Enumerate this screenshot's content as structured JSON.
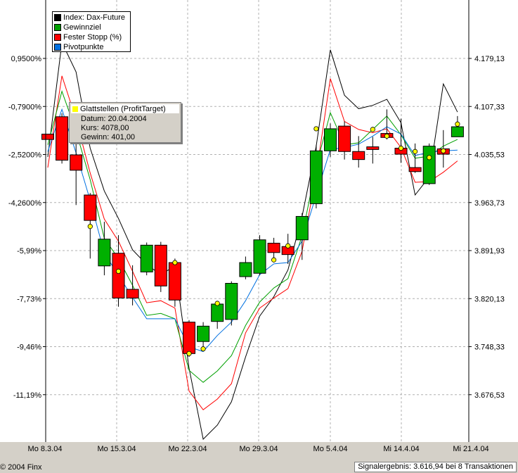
{
  "chart_data": {
    "type": "candlestick",
    "x_labels": [
      "Mo 8.3.04",
      "Mo 15.3.04",
      "Mo 22.3.04",
      "Mo 29.3.04",
      "Mo 5.4.04",
      "Mi 14.4.04",
      "Mi 21.4.04"
    ],
    "y_left_ticks": [
      "0,9500%",
      "-0,7900%",
      "-2,5200%",
      "-4,2600%",
      "-5,99%",
      "-7,73%",
      "-9,46%",
      "-11,19%"
    ],
    "y_right_ticks": [
      "4.179,13",
      "4.107,33",
      "4.035,53",
      "3.963,73",
      "3.891,93",
      "3.820,13",
      "3.748,33",
      "3.676,53"
    ],
    "y_right_values": [
      4179.13,
      4107.33,
      4035.53,
      3963.73,
      3891.93,
      3820.13,
      3748.33,
      3676.53
    ],
    "legend": [
      {
        "label": "Index: Dax-Future",
        "color": "#000000"
      },
      {
        "label": "Gewinnziel",
        "color": "#00a000"
      },
      {
        "label": "Fester Stopp (%)",
        "color": "#ff0000"
      },
      {
        "label": "Pivotpunkte",
        "color": "#0070e0"
      }
    ],
    "candles": [
      {
        "o": 4066,
        "c": 4058,
        "h": 4066,
        "l": 4058
      },
      {
        "o": 4092,
        "c": 4027,
        "h": 4097,
        "l": 4022
      },
      {
        "o": 4035,
        "c": 4012,
        "h": 4055,
        "l": 3960
      },
      {
        "o": 3975,
        "c": 3937,
        "h": 3978,
        "l": 3880
      },
      {
        "o": 3869,
        "c": 3909,
        "h": 3935,
        "l": 3855
      },
      {
        "o": 3888,
        "c": 3821,
        "h": 3915,
        "l": 3808
      },
      {
        "o": 3834,
        "c": 3821,
        "h": 3870,
        "l": 3810
      },
      {
        "o": 3860,
        "c": 3900,
        "h": 3904,
        "l": 3855
      },
      {
        "o": 3900,
        "c": 3839,
        "h": 3905,
        "l": 3830
      },
      {
        "o": 3874,
        "c": 3818,
        "h": 3880,
        "l": 3808
      },
      {
        "o": 3785,
        "c": 3738,
        "h": 3788,
        "l": 3733
      },
      {
        "o": 3756,
        "c": 3779,
        "h": 3785,
        "l": 3745
      },
      {
        "o": 3786,
        "c": 3812,
        "h": 3815,
        "l": 3775
      },
      {
        "o": 3789,
        "c": 3843,
        "h": 3846,
        "l": 3780
      },
      {
        "o": 3853,
        "c": 3874,
        "h": 3883,
        "l": 3849
      },
      {
        "o": 3858,
        "c": 3908,
        "h": 3915,
        "l": 3855
      },
      {
        "o": 3903,
        "c": 3889,
        "h": 3911,
        "l": 3881
      },
      {
        "o": 3898,
        "c": 3886,
        "h": 3917,
        "l": 3872
      },
      {
        "o": 3908,
        "c": 3943,
        "h": 3948,
        "l": 3878
      },
      {
        "o": 3962,
        "c": 4041,
        "h": 4050,
        "l": 3955
      },
      {
        "o": 4041,
        "c": 4074,
        "h": 4082,
        "l": 4032
      },
      {
        "o": 4078,
        "c": 4040,
        "h": 4085,
        "l": 4028
      },
      {
        "o": 4040,
        "c": 4028,
        "h": 4063,
        "l": 4016
      },
      {
        "o": 4047,
        "c": 4043,
        "h": 4062,
        "l": 4022
      },
      {
        "o": 4067,
        "c": 4061,
        "h": 4103,
        "l": 4058
      },
      {
        "o": 4045,
        "c": 4036,
        "h": 4089,
        "l": 4023
      },
      {
        "o": 4016,
        "c": 4010,
        "h": 4052,
        "l": 4008
      },
      {
        "o": 3992,
        "c": 4048,
        "h": 4052,
        "l": 3990
      },
      {
        "o": 4044,
        "c": 4036,
        "h": 4072,
        "l": 4016
      },
      {
        "o": 4062,
        "c": 4077,
        "h": 4093,
        "l": 4062
      }
    ],
    "series": [
      {
        "name": "Index: Dax-Future",
        "color": "#000000",
        "values": [
          4032,
          4203,
          4159,
          4045,
          3981,
          3940,
          3893,
          3871,
          3856,
          3869,
          3716,
          3610,
          3631,
          3666,
          3733,
          3794,
          3823,
          3863,
          3943,
          4048,
          4192,
          4124,
          4104,
          4109,
          4118,
          4083,
          3975,
          4002,
          4141,
          4099
        ]
      },
      {
        "name": "Fester Stopp (%)",
        "color": "#ff0000",
        "values": [
          4016,
          4153,
          4088,
          4008,
          3939,
          3906,
          3861,
          3814,
          3817,
          3806,
          3682,
          3654,
          3670,
          3693,
          3769,
          3806,
          3821,
          3835,
          3891,
          4006,
          4149,
          4085,
          4073,
          4068,
          4074,
          4046,
          3994,
          3995,
          4009,
          4026
        ]
      },
      {
        "name": "Gewinnziel",
        "color": "#00a000",
        "values": [
          4050,
          4130,
          4070,
          3998,
          3910,
          3880,
          3840,
          3795,
          3798,
          3790,
          3713,
          3695,
          3712,
          3735,
          3780,
          3815,
          3836,
          3850,
          3914,
          4018,
          4098,
          4050,
          4053,
          4073,
          4093,
          4065,
          4030,
          4033,
          4048,
          4058
        ]
      },
      {
        "name": "Pivotpunkte",
        "color": "#0070e0",
        "values": [
          4040,
          4103,
          4038,
          3967,
          3888,
          3855,
          3822,
          3790,
          3790,
          3790,
          3748,
          3741,
          3765,
          3785,
          3817,
          3856,
          3872,
          3874,
          3906,
          3975,
          4043,
          4046,
          4051,
          4063,
          4077,
          4066,
          4034,
          4039,
          4041,
          4042
        ]
      }
    ],
    "markers": [
      {
        "candle": 3,
        "v": 3928
      },
      {
        "candle": 5,
        "v": 3861
      },
      {
        "candle": 9,
        "v": 3874
      },
      {
        "candle": 10,
        "v": 3738
      },
      {
        "candle": 11,
        "v": 3745
      },
      {
        "candle": 12,
        "v": 3813
      },
      {
        "candle": 16,
        "v": 3878
      },
      {
        "candle": 17,
        "v": 3899
      },
      {
        "candle": 19,
        "v": 4074
      },
      {
        "candle": 23,
        "v": 4073
      },
      {
        "candle": 24,
        "v": 4063
      },
      {
        "candle": 25,
        "v": 4045
      },
      {
        "candle": 26,
        "v": 4040
      },
      {
        "candle": 27,
        "v": 4031
      },
      {
        "candle": 28,
        "v": 4041
      },
      {
        "candle": 29,
        "v": 4081
      }
    ],
    "grid": true,
    "legend_position": "top-left"
  },
  "tooltip": {
    "title": "Glattstellen (ProfitTarget)",
    "date": "Datum: 20.04.2004",
    "price": "Kurs: 4078,00",
    "profit": "Gewinn: 401,00"
  },
  "footer": {
    "copyright": "© 2004 Finx",
    "result": "Signalergebnis: 3.616,94 bei 8 Transaktionen"
  }
}
